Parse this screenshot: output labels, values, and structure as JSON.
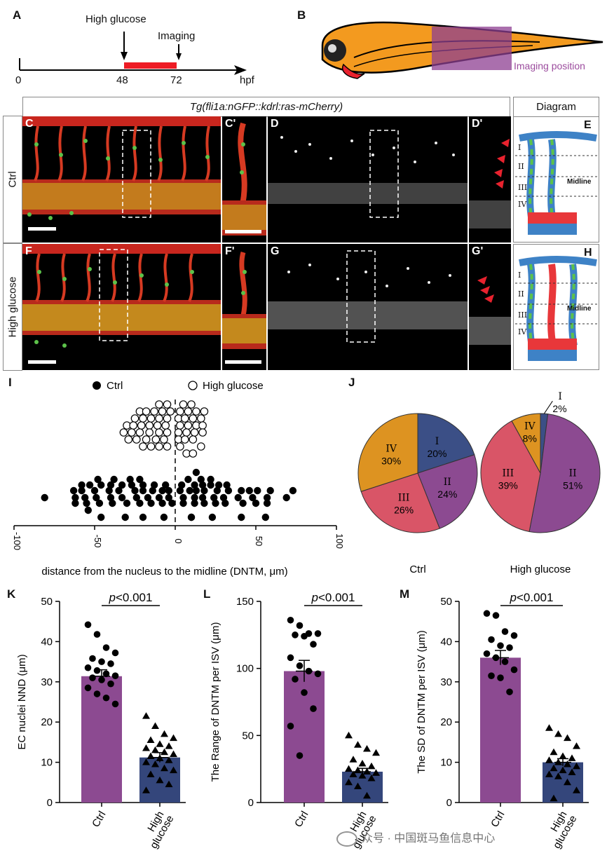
{
  "panel_letters": [
    "A",
    "B",
    "C",
    "C'",
    "D",
    "D'",
    "E",
    "F",
    "F'",
    "G",
    "G'",
    "H",
    "I",
    "J",
    "K",
    "L",
    "M"
  ],
  "panelA": {
    "treatment_label": "High glucose",
    "imaging_label": "Imaging",
    "ticks": [
      "0",
      "48",
      "72"
    ],
    "unit": "hpf",
    "colors": {
      "treatment": "#ee1c25"
    }
  },
  "panelB": {
    "imaging_position_label": "Imaging position",
    "colors": {
      "body": "#f39a1f",
      "box": "#8e3f91"
    }
  },
  "header": {
    "transgene": "Tg(fli1a:nGFP::kdrl:ras-mCherry)",
    "diagram_title": "Diagram"
  },
  "rows": {
    "ctrl_label": "Ctrl",
    "hg_label": "High glucose"
  },
  "diagram": {
    "segments": [
      "I",
      "II",
      "III",
      "IV"
    ],
    "midline_label": "Midline",
    "colors": {
      "vessel": "#3e82c6",
      "red": "#e8373a",
      "green": "#5cc24a"
    }
  },
  "chart_data": [
    {
      "id": "I",
      "type": "scatter",
      "xlabel": "distance from the nucleus to the midline (DNTM, μm)",
      "xlim": [
        -100,
        100
      ],
      "xticks": [
        "-100",
        "-50",
        "0",
        "50",
        "100"
      ],
      "legend": {
        "ctrl": "Ctrl",
        "hg": "High glucose",
        "placement": "top"
      },
      "series": [
        {
          "name": "High glucose",
          "marker": "open-circle",
          "values": [
            -10,
            -5,
            5,
            10,
            -22,
            -18,
            -13,
            -8,
            -3,
            3,
            8,
            13,
            18,
            -25,
            -20,
            -15,
            -10,
            -5,
            2,
            6,
            11,
            16,
            -30,
            -26,
            -21,
            -16,
            -11,
            -6,
            3,
            8,
            13,
            17,
            -32,
            -27,
            -22,
            -16,
            -10,
            -5,
            2,
            7,
            12,
            17,
            -29,
            -24,
            -18,
            -12,
            -7,
            2,
            6,
            11,
            16,
            -20,
            -15,
            -10,
            -5,
            3,
            7,
            11
          ]
        },
        {
          "name": "Ctrl",
          "marker": "filled-circle",
          "values": [
            13,
            -48,
            -38,
            -28,
            -22,
            8,
            16,
            22,
            -58,
            -53,
            -46,
            -40,
            -33,
            -27,
            -20,
            -13,
            -6,
            4,
            12,
            17,
            22,
            27,
            32,
            -63,
            -58,
            -50,
            -41,
            -35,
            -25,
            -20,
            -14,
            -8,
            -4,
            3,
            9,
            13,
            18,
            26,
            33,
            41,
            46,
            51,
            59,
            73,
            -81,
            -62,
            -56,
            -49,
            -40,
            -33,
            -24,
            -17,
            -10,
            -4,
            5,
            12,
            17,
            24,
            30,
            39,
            48,
            57,
            69,
            -62,
            -55,
            -47,
            -39,
            -30,
            -22,
            -15,
            -8,
            -2,
            5,
            12,
            18,
            25,
            31,
            42,
            50,
            57,
            -54,
            -46,
            -31,
            -20,
            -7,
            10,
            23,
            41,
            56,
            10
          ]
        }
      ]
    },
    {
      "id": "J-ctrl",
      "type": "pie",
      "title": "Ctrl",
      "slices": [
        {
          "label": "I",
          "value": 20,
          "text": "20%",
          "color": "#3b4f86"
        },
        {
          "label": "II",
          "value": 24,
          "text": "24%",
          "color": "#8c4a91"
        },
        {
          "label": "III",
          "value": 26,
          "text": "26%",
          "color": "#d95567"
        },
        {
          "label": "IV",
          "value": 30,
          "text": "30%",
          "color": "#dd9321"
        }
      ]
    },
    {
      "id": "J-hg",
      "type": "pie",
      "title": "High glucose",
      "slices": [
        {
          "label": "I",
          "value": 2,
          "text": "2%",
          "color": "#3b4f86"
        },
        {
          "label": "II",
          "value": 51,
          "text": "51%",
          "color": "#8c4a91"
        },
        {
          "label": "III",
          "value": 39,
          "text": "39%",
          "color": "#d95567"
        },
        {
          "label": "IV",
          "value": 8,
          "text": "8%",
          "color": "#dd9321"
        }
      ]
    },
    {
      "id": "K",
      "type": "bar",
      "ylabel": "EC nuclei NND (μm)",
      "ylim": [
        0,
        50
      ],
      "yticks": [
        "0",
        "10",
        "20",
        "30",
        "40",
        "50"
      ],
      "categories": [
        "Ctrl",
        "High glucose"
      ],
      "values": [
        31.4,
        11.2
      ],
      "sem": [
        1.6,
        1.2
      ],
      "pvalue": "p<0.001",
      "points": [
        [
          44.2,
          41.8,
          38.5,
          37.2,
          35.8,
          35.0,
          34.5,
          33.5,
          32.8,
          32.0,
          31.5,
          31.0,
          30.5,
          29.5,
          28.5,
          27.0,
          26.0,
          24.5
        ],
        [
          21.5,
          19.0,
          17.0,
          16.0,
          15.5,
          14.5,
          14.0,
          13.5,
          13.0,
          12.5,
          12.0,
          11.5,
          11.0,
          10.5,
          10.0,
          9.5,
          8.5,
          8.0,
          7.0,
          5.5,
          4.5,
          3.0
        ]
      ]
    },
    {
      "id": "L",
      "type": "bar",
      "ylabel": "The Range of DNTM per ISV (μm)",
      "ylim": [
        0,
        150
      ],
      "yticks": [
        "0",
        "50",
        "100",
        "150"
      ],
      "categories": [
        "Ctrl",
        "High glucose"
      ],
      "values": [
        98,
        23
      ],
      "sem": [
        8,
        2.5
      ],
      "pvalue": "p<0.001",
      "points": [
        [
          136,
          132,
          126,
          126,
          125,
          124,
          118,
          108,
          102,
          98,
          96,
          92,
          82,
          70,
          57,
          35
        ],
        [
          50,
          43,
          40,
          37,
          32,
          29,
          27,
          25,
          24,
          23,
          22,
          21,
          20,
          18,
          15,
          12,
          5
        ]
      ]
    },
    {
      "id": "M",
      "type": "bar",
      "ylabel": "The SD of DNTM per ISV  (μm)",
      "ylim": [
        0,
        50
      ],
      "yticks": [
        "0",
        "10",
        "20",
        "30",
        "40",
        "50"
      ],
      "categories": [
        "Ctrl",
        "High glucose"
      ],
      "values": [
        36,
        10
      ],
      "sem": [
        1.8,
        0.9
      ],
      "pvalue": "p<0.001",
      "points": [
        [
          47,
          46.5,
          42.5,
          41.5,
          40.5,
          39,
          38.5,
          37,
          36,
          35,
          33,
          31.5,
          31,
          27.5
        ],
        [
          18.5,
          17,
          16,
          14,
          12.5,
          11.5,
          11,
          10.5,
          10,
          9.5,
          9,
          8.5,
          8,
          7.5,
          7,
          6.5,
          5,
          3,
          1
        ]
      ]
    }
  ],
  "bar_colors": {
    "ctrl": "#8c4a91",
    "hg": "#34467b"
  },
  "watermark": "众号 · 中国斑马鱼信息中心"
}
